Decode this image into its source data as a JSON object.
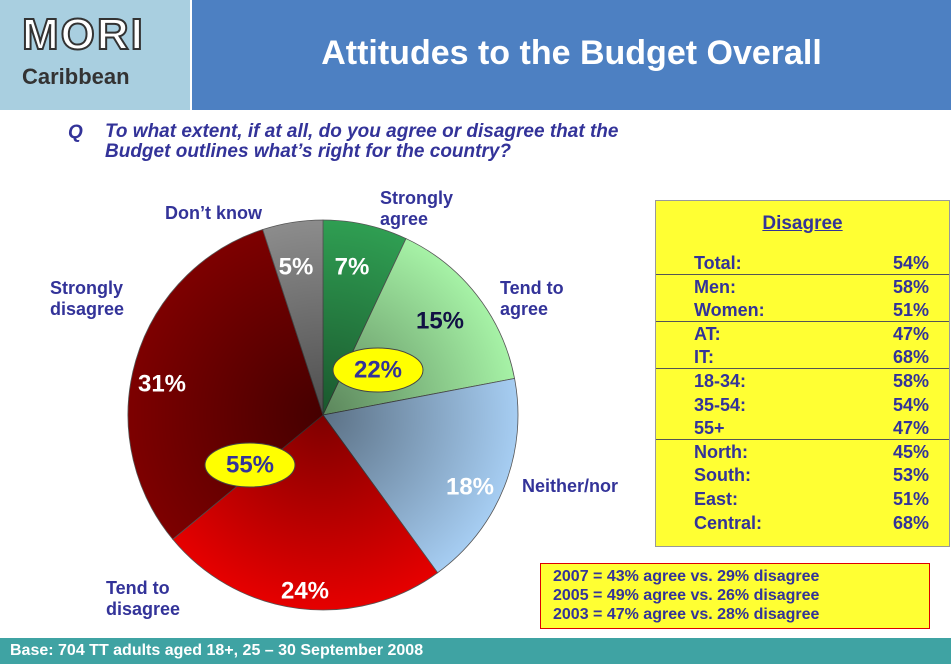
{
  "header": {
    "logo": "MORI",
    "logo_sub": "Caribbean",
    "title": "Attitudes to the Budget Overall"
  },
  "question": {
    "q": "Q",
    "text": "To what extent, if at all, do you agree or disagree that the Budget outlines what’s right for the country?"
  },
  "chart_data": {
    "type": "pie",
    "categories": [
      "Strongly agree",
      "Tend to agree",
      "Neither/nor",
      "Tend to disagree",
      "Strongly disagree",
      "Don’t know"
    ],
    "values": [
      7,
      15,
      18,
      24,
      31,
      5
    ],
    "value_labels": [
      "7%",
      "15%",
      "18%",
      "24%",
      "31%",
      "5%"
    ],
    "colors": [
      "#2f9e52",
      "#a6f2a6",
      "#a6cdf2",
      "#e60000",
      "#7d0000",
      "#8c8c8c"
    ],
    "groups": [
      {
        "value": 22,
        "label": "22%"
      },
      {
        "value": 55,
        "label": "55%"
      }
    ]
  },
  "table": {
    "title": "Disagree",
    "groups": [
      [
        [
          "Total:",
          "54%"
        ]
      ],
      [
        [
          "Men:",
          "58%"
        ],
        [
          "Women:",
          "51%"
        ]
      ],
      [
        [
          "AT:",
          "47%"
        ],
        [
          "IT:",
          "68%"
        ]
      ],
      [
        [
          "18-34:",
          "58%"
        ],
        [
          "35-54:",
          "54%"
        ],
        [
          "55+",
          "47%"
        ]
      ],
      [
        [
          "North:",
          "45%"
        ],
        [
          "South:",
          "53%"
        ],
        [
          "East:",
          "51%"
        ],
        [
          "Central:",
          "68%"
        ]
      ]
    ]
  },
  "note": {
    "lines": [
      "2007 = 43% agree vs. 29% disagree",
      "2005 = 49% agree vs. 26% disagree",
      "2003 = 47% agree vs. 28% disagree"
    ]
  },
  "footer": "Base: 704 TT adults aged 18+, 25 – 30 September 2008"
}
